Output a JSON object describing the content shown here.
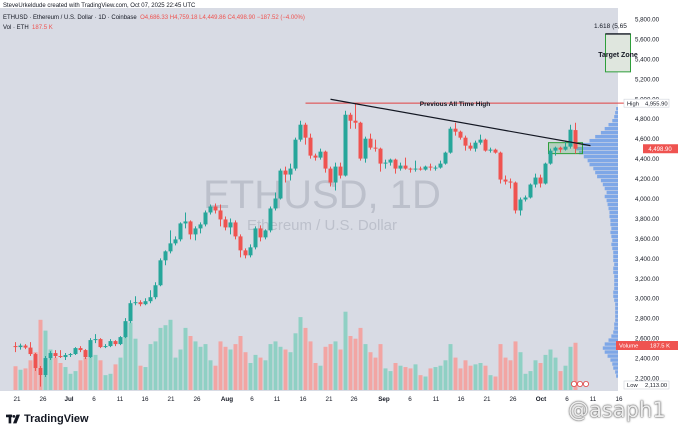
{
  "header": {
    "credit": "SteveUrkeldude created with TradingView.com, Oct 07, 2025 22:45 UTC",
    "symbol": "ETHUSD · Ethereum / U.S. Dollar · 1D · Coinbase",
    "ohlc": "O4,686.33  H4,759.18  L4,449.86  C4,498.90  −187.52 (−4.00%)",
    "vol_label": "Vol 187.5 K  −187.52 (−4.00%)",
    "vol_short": "Vol · ETH",
    "vol_value": "187.5 K"
  },
  "watermark": {
    "symbol": "ETHUSD, 1D",
    "name": "Ethereum / U.S. Dollar"
  },
  "annotations": {
    "ath": "Previous All Time High",
    "target": "Target Zone",
    "fib": "1.618 (5,65"
  },
  "price_axis": {
    "labels": [
      "5,800.00",
      "5,600.00",
      "5,400.00",
      "5,200.00",
      "5,000.00",
      "4,800.00",
      "4,600.00",
      "4,400.00",
      "4,200.00",
      "4,000.00",
      "3,800.00",
      "3,600.00",
      "3,400.00",
      "3,200.00",
      "3,000.00",
      "2,800.00",
      "2,600.00",
      "2,400.00",
      "2,200.00"
    ],
    "high_tag": "High",
    "high_value": "4,955.90",
    "last_value": "4,498.90",
    "volume_tag": "Volume",
    "volume_value": "187.5 K",
    "low_tag": "Low",
    "low_value": "2,113.00"
  },
  "time_axis": {
    "labels": [
      "21",
      "26",
      "Jul",
      "6",
      "11",
      "16",
      "21",
      "26",
      "Aug",
      "6",
      "11",
      "16",
      "21",
      "26",
      "Sep",
      "6",
      "11",
      "16",
      "21",
      "26",
      "Oct",
      "6",
      "11",
      "16"
    ]
  },
  "footer": {
    "brand": "TradingView",
    "user": "@asaph1"
  },
  "colors": {
    "up": "#26a69a",
    "down": "#ef5350",
    "up_vol": "#8fd0c4",
    "down_vol": "#f2a5a3",
    "profile": "#6f9de8",
    "bg": "#d8dbe4"
  },
  "chart_data": {
    "type": "candlestick",
    "title": "ETHUSD · Ethereum / U.S. Dollar · 1D · Coinbase",
    "y_range": [
      2113,
      5900
    ],
    "high": 4955.9,
    "low": 2113.0,
    "last_close": 4498.9,
    "x_start": "2025-06-17",
    "x_end": "2025-10-18",
    "candles": [
      {
        "d": "2025-06-17",
        "o": 2520,
        "h": 2560,
        "l": 2460,
        "c": 2510,
        "v": 88
      },
      {
        "d": "2025-06-18",
        "o": 2510,
        "h": 2545,
        "l": 2485,
        "c": 2525,
        "v": 75
      },
      {
        "d": "2025-06-19",
        "o": 2525,
        "h": 2540,
        "l": 2490,
        "c": 2505,
        "v": 80
      },
      {
        "d": "2025-06-20",
        "o": 2505,
        "h": 2560,
        "l": 2420,
        "c": 2440,
        "v": 110
      },
      {
        "d": "2025-06-21",
        "o": 2440,
        "h": 2450,
        "l": 2270,
        "c": 2300,
        "v": 140
      },
      {
        "d": "2025-06-22",
        "o": 2300,
        "h": 2320,
        "l": 2113,
        "c": 2230,
        "v": 260
      },
      {
        "d": "2025-06-23",
        "o": 2230,
        "h": 2420,
        "l": 2210,
        "c": 2400,
        "v": 220
      },
      {
        "d": "2025-06-24",
        "o": 2400,
        "h": 2470,
        "l": 2380,
        "c": 2450,
        "v": 150
      },
      {
        "d": "2025-06-25",
        "o": 2450,
        "h": 2480,
        "l": 2400,
        "c": 2420,
        "v": 120
      },
      {
        "d": "2025-06-26",
        "o": 2420,
        "h": 2480,
        "l": 2400,
        "c": 2410,
        "v": 100
      },
      {
        "d": "2025-06-27",
        "o": 2410,
        "h": 2450,
        "l": 2380,
        "c": 2430,
        "v": 85
      },
      {
        "d": "2025-06-28",
        "o": 2430,
        "h": 2450,
        "l": 2410,
        "c": 2440,
        "v": 60
      },
      {
        "d": "2025-06-29",
        "o": 2440,
        "h": 2510,
        "l": 2430,
        "c": 2500,
        "v": 70
      },
      {
        "d": "2025-06-30",
        "o": 2500,
        "h": 2520,
        "l": 2460,
        "c": 2480,
        "v": 110
      },
      {
        "d": "2025-07-01",
        "o": 2480,
        "h": 2490,
        "l": 2390,
        "c": 2410,
        "v": 120
      },
      {
        "d": "2025-07-02",
        "o": 2410,
        "h": 2600,
        "l": 2400,
        "c": 2580,
        "v": 160
      },
      {
        "d": "2025-07-03",
        "o": 2580,
        "h": 2640,
        "l": 2550,
        "c": 2590,
        "v": 130
      },
      {
        "d": "2025-07-04",
        "o": 2590,
        "h": 2600,
        "l": 2500,
        "c": 2510,
        "v": 110
      },
      {
        "d": "2025-07-05",
        "o": 2510,
        "h": 2540,
        "l": 2500,
        "c": 2520,
        "v": 55
      },
      {
        "d": "2025-07-06",
        "o": 2520,
        "h": 2590,
        "l": 2510,
        "c": 2570,
        "v": 60
      },
      {
        "d": "2025-07-07",
        "o": 2570,
        "h": 2580,
        "l": 2520,
        "c": 2540,
        "v": 95
      },
      {
        "d": "2025-07-08",
        "o": 2540,
        "h": 2620,
        "l": 2530,
        "c": 2610,
        "v": 120
      },
      {
        "d": "2025-07-09",
        "o": 2610,
        "h": 2800,
        "l": 2600,
        "c": 2770,
        "v": 200
      },
      {
        "d": "2025-07-10",
        "o": 2770,
        "h": 2980,
        "l": 2750,
        "c": 2950,
        "v": 250
      },
      {
        "d": "2025-07-11",
        "o": 2950,
        "h": 3020,
        "l": 2930,
        "c": 2960,
        "v": 190
      },
      {
        "d": "2025-07-12",
        "o": 2960,
        "h": 2980,
        "l": 2920,
        "c": 2940,
        "v": 90
      },
      {
        "d": "2025-07-13",
        "o": 2940,
        "h": 3000,
        "l": 2930,
        "c": 2970,
        "v": 85
      },
      {
        "d": "2025-07-14",
        "o": 2970,
        "h": 3080,
        "l": 2950,
        "c": 3010,
        "v": 170
      },
      {
        "d": "2025-07-15",
        "o": 3010,
        "h": 3160,
        "l": 2990,
        "c": 3130,
        "v": 180
      },
      {
        "d": "2025-07-16",
        "o": 3130,
        "h": 3400,
        "l": 3120,
        "c": 3380,
        "v": 230
      },
      {
        "d": "2025-07-17",
        "o": 3380,
        "h": 3480,
        "l": 3330,
        "c": 3470,
        "v": 240
      },
      {
        "d": "2025-07-18",
        "o": 3470,
        "h": 3680,
        "l": 3450,
        "c": 3550,
        "v": 260
      },
      {
        "d": "2025-07-19",
        "o": 3550,
        "h": 3620,
        "l": 3530,
        "c": 3590,
        "v": 120
      },
      {
        "d": "2025-07-20",
        "o": 3590,
        "h": 3760,
        "l": 3570,
        "c": 3750,
        "v": 150
      },
      {
        "d": "2025-07-21",
        "o": 3750,
        "h": 3860,
        "l": 3700,
        "c": 3770,
        "v": 230
      },
      {
        "d": "2025-07-22",
        "o": 3770,
        "h": 3780,
        "l": 3590,
        "c": 3640,
        "v": 200
      },
      {
        "d": "2025-07-23",
        "o": 3640,
        "h": 3720,
        "l": 3580,
        "c": 3700,
        "v": 180
      },
      {
        "d": "2025-07-24",
        "o": 3700,
        "h": 3760,
        "l": 3650,
        "c": 3740,
        "v": 160
      },
      {
        "d": "2025-07-25",
        "o": 3740,
        "h": 3880,
        "l": 3720,
        "c": 3860,
        "v": 170
      },
      {
        "d": "2025-07-26",
        "o": 3860,
        "h": 3940,
        "l": 3840,
        "c": 3920,
        "v": 110
      },
      {
        "d": "2025-07-27",
        "o": 3920,
        "h": 3950,
        "l": 3850,
        "c": 3880,
        "v": 90
      },
      {
        "d": "2025-07-28",
        "o": 3880,
        "h": 3940,
        "l": 3720,
        "c": 3790,
        "v": 180
      },
      {
        "d": "2025-07-29",
        "o": 3790,
        "h": 3820,
        "l": 3680,
        "c": 3710,
        "v": 160
      },
      {
        "d": "2025-07-30",
        "o": 3710,
        "h": 3800,
        "l": 3640,
        "c": 3760,
        "v": 150
      },
      {
        "d": "2025-07-31",
        "o": 3760,
        "h": 3780,
        "l": 3590,
        "c": 3620,
        "v": 170
      },
      {
        "d": "2025-08-01",
        "o": 3620,
        "h": 3640,
        "l": 3410,
        "c": 3480,
        "v": 200
      },
      {
        "d": "2025-08-02",
        "o": 3480,
        "h": 3500,
        "l": 3400,
        "c": 3430,
        "v": 140
      },
      {
        "d": "2025-08-03",
        "o": 3430,
        "h": 3540,
        "l": 3410,
        "c": 3510,
        "v": 100
      },
      {
        "d": "2025-08-04",
        "o": 3510,
        "h": 3720,
        "l": 3490,
        "c": 3700,
        "v": 130
      },
      {
        "d": "2025-08-05",
        "o": 3700,
        "h": 3730,
        "l": 3570,
        "c": 3610,
        "v": 120
      },
      {
        "d": "2025-08-06",
        "o": 3610,
        "h": 3690,
        "l": 3590,
        "c": 3680,
        "v": 110
      },
      {
        "d": "2025-08-07",
        "o": 3680,
        "h": 3920,
        "l": 3660,
        "c": 3900,
        "v": 170
      },
      {
        "d": "2025-08-08",
        "o": 3900,
        "h": 4060,
        "l": 3880,
        "c": 4000,
        "v": 180
      },
      {
        "d": "2025-08-09",
        "o": 4000,
        "h": 4300,
        "l": 3990,
        "c": 4280,
        "v": 160
      },
      {
        "d": "2025-08-10",
        "o": 4280,
        "h": 4320,
        "l": 4160,
        "c": 4240,
        "v": 150
      },
      {
        "d": "2025-08-11",
        "o": 4240,
        "h": 4350,
        "l": 4180,
        "c": 4300,
        "v": 140
      },
      {
        "d": "2025-08-12",
        "o": 4300,
        "h": 4610,
        "l": 4280,
        "c": 4590,
        "v": 210
      },
      {
        "d": "2025-08-13",
        "o": 4590,
        "h": 4780,
        "l": 4570,
        "c": 4740,
        "v": 270
      },
      {
        "d": "2025-08-14",
        "o": 4740,
        "h": 4760,
        "l": 4540,
        "c": 4610,
        "v": 230
      },
      {
        "d": "2025-08-15",
        "o": 4610,
        "h": 4650,
        "l": 4400,
        "c": 4430,
        "v": 180
      },
      {
        "d": "2025-08-16",
        "o": 4430,
        "h": 4450,
        "l": 4380,
        "c": 4410,
        "v": 100
      },
      {
        "d": "2025-08-17",
        "o": 4410,
        "h": 4500,
        "l": 4390,
        "c": 4470,
        "v": 90
      },
      {
        "d": "2025-08-18",
        "o": 4470,
        "h": 4480,
        "l": 4260,
        "c": 4300,
        "v": 160
      },
      {
        "d": "2025-08-19",
        "o": 4300,
        "h": 4320,
        "l": 4120,
        "c": 4160,
        "v": 170
      },
      {
        "d": "2025-08-20",
        "o": 4160,
        "h": 4360,
        "l": 4080,
        "c": 4320,
        "v": 180
      },
      {
        "d": "2025-08-21",
        "o": 4320,
        "h": 4360,
        "l": 4200,
        "c": 4230,
        "v": 150
      },
      {
        "d": "2025-08-22",
        "o": 4230,
        "h": 4880,
        "l": 4220,
        "c": 4840,
        "v": 290
      },
      {
        "d": "2025-08-23",
        "o": 4840,
        "h": 4860,
        "l": 4700,
        "c": 4780,
        "v": 200
      },
      {
        "d": "2025-08-24",
        "o": 4780,
        "h": 4956,
        "l": 4700,
        "c": 4760,
        "v": 190
      },
      {
        "d": "2025-08-25",
        "o": 4760,
        "h": 4770,
        "l": 4380,
        "c": 4400,
        "v": 230
      },
      {
        "d": "2025-08-26",
        "o": 4400,
        "h": 4620,
        "l": 4360,
        "c": 4600,
        "v": 170
      },
      {
        "d": "2025-08-27",
        "o": 4600,
        "h": 4650,
        "l": 4490,
        "c": 4510,
        "v": 140
      },
      {
        "d": "2025-08-28",
        "o": 4510,
        "h": 4590,
        "l": 4470,
        "c": 4500,
        "v": 120
      },
      {
        "d": "2025-08-29",
        "o": 4500,
        "h": 4510,
        "l": 4270,
        "c": 4350,
        "v": 170
      },
      {
        "d": "2025-08-30",
        "o": 4350,
        "h": 4390,
        "l": 4300,
        "c": 4360,
        "v": 80
      },
      {
        "d": "2025-08-31",
        "o": 4360,
        "h": 4400,
        "l": 4330,
        "c": 4390,
        "v": 70
      },
      {
        "d": "2025-09-01",
        "o": 4390,
        "h": 4400,
        "l": 4250,
        "c": 4300,
        "v": 100
      },
      {
        "d": "2025-09-02",
        "o": 4300,
        "h": 4360,
        "l": 4280,
        "c": 4330,
        "v": 90
      },
      {
        "d": "2025-09-03",
        "o": 4330,
        "h": 4410,
        "l": 4290,
        "c": 4300,
        "v": 85
      },
      {
        "d": "2025-09-04",
        "o": 4300,
        "h": 4310,
        "l": 4260,
        "c": 4290,
        "v": 80
      },
      {
        "d": "2025-09-05",
        "o": 4290,
        "h": 4380,
        "l": 4270,
        "c": 4300,
        "v": 95
      },
      {
        "d": "2025-09-06",
        "o": 4300,
        "h": 4320,
        "l": 4280,
        "c": 4290,
        "v": 55
      },
      {
        "d": "2025-09-07",
        "o": 4290,
        "h": 4330,
        "l": 4280,
        "c": 4320,
        "v": 50
      },
      {
        "d": "2025-09-08",
        "o": 4320,
        "h": 4350,
        "l": 4280,
        "c": 4310,
        "v": 80
      },
      {
        "d": "2025-09-09",
        "o": 4310,
        "h": 4330,
        "l": 4280,
        "c": 4310,
        "v": 85
      },
      {
        "d": "2025-09-10",
        "o": 4310,
        "h": 4380,
        "l": 4300,
        "c": 4350,
        "v": 90
      },
      {
        "d": "2025-09-11",
        "o": 4350,
        "h": 4470,
        "l": 4340,
        "c": 4460,
        "v": 110
      },
      {
        "d": "2025-09-12",
        "o": 4460,
        "h": 4720,
        "l": 4450,
        "c": 4700,
        "v": 170
      },
      {
        "d": "2025-09-13",
        "o": 4700,
        "h": 4760,
        "l": 4630,
        "c": 4670,
        "v": 120
      },
      {
        "d": "2025-09-14",
        "o": 4670,
        "h": 4680,
        "l": 4590,
        "c": 4610,
        "v": 80
      },
      {
        "d": "2025-09-15",
        "o": 4610,
        "h": 4630,
        "l": 4480,
        "c": 4530,
        "v": 110
      },
      {
        "d": "2025-09-16",
        "o": 4530,
        "h": 4560,
        "l": 4480,
        "c": 4500,
        "v": 90
      },
      {
        "d": "2025-09-17",
        "o": 4500,
        "h": 4580,
        "l": 4470,
        "c": 4560,
        "v": 95
      },
      {
        "d": "2025-09-18",
        "o": 4560,
        "h": 4640,
        "l": 4540,
        "c": 4590,
        "v": 100
      },
      {
        "d": "2025-09-19",
        "o": 4590,
        "h": 4600,
        "l": 4470,
        "c": 4480,
        "v": 90
      },
      {
        "d": "2025-09-20",
        "o": 4480,
        "h": 4510,
        "l": 4460,
        "c": 4490,
        "v": 55
      },
      {
        "d": "2025-09-21",
        "o": 4490,
        "h": 4500,
        "l": 4450,
        "c": 4460,
        "v": 50
      },
      {
        "d": "2025-09-22",
        "o": 4460,
        "h": 4470,
        "l": 4150,
        "c": 4190,
        "v": 170
      },
      {
        "d": "2025-09-23",
        "o": 4190,
        "h": 4230,
        "l": 4140,
        "c": 4170,
        "v": 120
      },
      {
        "d": "2025-09-24",
        "o": 4170,
        "h": 4200,
        "l": 4100,
        "c": 4160,
        "v": 110
      },
      {
        "d": "2025-09-25",
        "o": 4160,
        "h": 4170,
        "l": 3850,
        "c": 3880,
        "v": 180
      },
      {
        "d": "2025-09-26",
        "o": 3880,
        "h": 4010,
        "l": 3830,
        "c": 3990,
        "v": 140
      },
      {
        "d": "2025-09-27",
        "o": 3990,
        "h": 4030,
        "l": 3970,
        "c": 4010,
        "v": 60
      },
      {
        "d": "2025-09-28",
        "o": 4010,
        "h": 4150,
        "l": 4000,
        "c": 4140,
        "v": 70
      },
      {
        "d": "2025-09-29",
        "o": 4140,
        "h": 4250,
        "l": 4110,
        "c": 4210,
        "v": 110
      },
      {
        "d": "2025-09-30",
        "o": 4210,
        "h": 4240,
        "l": 4110,
        "c": 4150,
        "v": 100
      },
      {
        "d": "2025-10-01",
        "o": 4150,
        "h": 4360,
        "l": 4140,
        "c": 4350,
        "v": 130
      },
      {
        "d": "2025-10-02",
        "o": 4350,
        "h": 4500,
        "l": 4340,
        "c": 4480,
        "v": 150
      },
      {
        "d": "2025-10-03",
        "o": 4480,
        "h": 4520,
        "l": 4430,
        "c": 4510,
        "v": 120
      },
      {
        "d": "2025-10-04",
        "o": 4510,
        "h": 4520,
        "l": 4460,
        "c": 4490,
        "v": 70
      },
      {
        "d": "2025-10-05",
        "o": 4490,
        "h": 4580,
        "l": 4480,
        "c": 4520,
        "v": 90
      },
      {
        "d": "2025-10-06",
        "o": 4520,
        "h": 4740,
        "l": 4500,
        "c": 4690,
        "v": 160
      },
      {
        "d": "2025-10-07",
        "o": 4686,
        "h": 4759,
        "l": 4450,
        "c": 4499,
        "v": 175
      }
    ],
    "trendline": {
      "from": {
        "d": "2025-08-24",
        "p": 4955
      },
      "to": {
        "d": "2025-10-09",
        "p": 4540
      }
    },
    "ath_line": {
      "price": 4955.9,
      "from": "2025-08-14",
      "to": "2025-10-18"
    },
    "target_zone": {
      "from": "2025-10-13",
      "to": "2025-10-18",
      "top": 5650,
      "bottom": 5270
    },
    "consolidation_box": {
      "from": "2025-10-02",
      "to": "2025-10-08",
      "top": 4560,
      "bottom": 4450
    }
  }
}
